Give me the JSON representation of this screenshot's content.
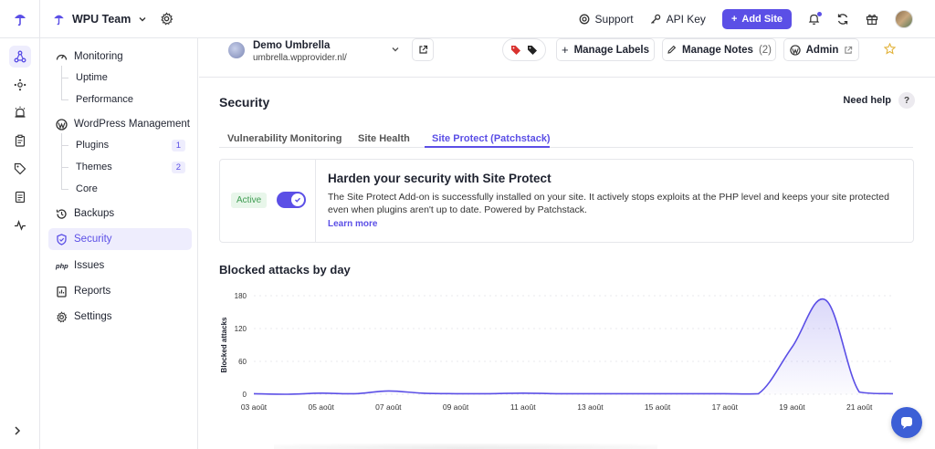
{
  "topbar": {
    "team_name": "WPU Team",
    "support_label": "Support",
    "api_key_label": "API Key",
    "add_site_label": "Add Site"
  },
  "rail": {
    "items": [
      "sites-icon",
      "network-icon",
      "alarm-icon",
      "clipboard-icon",
      "tag-icon",
      "document-icon",
      "activity-icon"
    ]
  },
  "sidebar": {
    "monitoring": "Monitoring",
    "uptime": "Uptime",
    "performance": "Performance",
    "wordpress_management": "WordPress Management",
    "plugins": "Plugins",
    "plugins_count": "1",
    "themes": "Themes",
    "themes_count": "2",
    "core": "Core",
    "backups": "Backups",
    "security": "Security",
    "issues": "Issues",
    "reports": "Reports",
    "settings": "Settings"
  },
  "site": {
    "name": "Demo Umbrella",
    "url": "umbrella.wpprovider.nl/",
    "manage_labels": "Manage Labels",
    "manage_notes": "Manage Notes",
    "notes_count": "(2)",
    "admin": "Admin"
  },
  "security": {
    "title": "Security",
    "need_help": "Need help",
    "tabs": [
      "Vulnerability Monitoring",
      "Site Health",
      "Site Protect (Patchstack)"
    ],
    "status": "Active",
    "protect_title": "Harden your security with Site Protect",
    "protect_desc": "The Site Protect Add-on is successfully installed on your site. It actively stops exploits at the PHP level and keeps your site protected even when plugins aren't up to date. Powered by Patchstack.",
    "learn_more": "Learn more"
  },
  "colors": {
    "accent": "#5b4fe6",
    "active_green": "#3f9c52"
  },
  "chart_data": {
    "type": "area",
    "title": "Blocked attacks by day",
    "ylabel": "Blocked attacks",
    "xlabel": "",
    "ylim": [
      0,
      180
    ],
    "y_ticks": [
      0,
      60,
      120,
      180
    ],
    "x_tick_labels": [
      "03 août",
      "05 août",
      "07 août",
      "09 août",
      "11 août",
      "13 août",
      "15 août",
      "17 août",
      "19 août",
      "21 août"
    ],
    "x": [
      "03 août",
      "04 août",
      "05 août",
      "06 août",
      "07 août",
      "08 août",
      "09 août",
      "10 août",
      "11 août",
      "12 août",
      "13 août",
      "14 août",
      "15 août",
      "16 août",
      "17 août",
      "18 août",
      "19 août",
      "20 août",
      "21 août",
      "22 août"
    ],
    "series": [
      {
        "values": [
          1,
          0,
          2,
          1,
          6,
          2,
          1,
          1,
          2,
          1,
          1,
          1,
          1,
          1,
          1,
          1,
          86,
          172,
          4,
          1
        ]
      }
    ],
    "grid": true
  }
}
